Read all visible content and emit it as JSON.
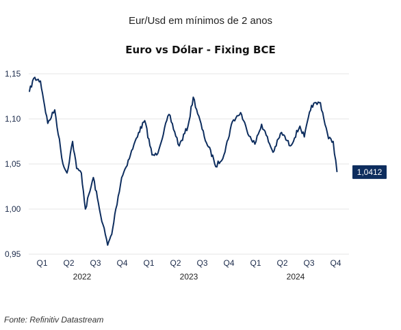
{
  "headline": "Eur/Usd em mínimos de 2 anos",
  "source": "Fonte: Refinitiv Datastream",
  "colors": {
    "line": "#0d2d5e",
    "label_bg": "#0d2d5e",
    "grid": "#e6e6e6"
  },
  "chart_data": {
    "type": "line",
    "title": "Euro vs Dólar - Fixing BCE",
    "xlabel": "",
    "ylabel": "",
    "ylim": [
      0.95,
      1.15
    ],
    "y_ticks": [
      "0,95",
      "1,00",
      "1,05",
      "1,10",
      "1,15"
    ],
    "grid": true,
    "x_quarters": [
      "Q1",
      "Q2",
      "Q3",
      "Q4",
      "Q1",
      "Q2",
      "Q3",
      "Q4",
      "Q1",
      "Q2",
      "Q3",
      "Q4"
    ],
    "x_years": [
      "2022",
      "2023",
      "2024"
    ],
    "end_value_label": "1,0412",
    "series": [
      {
        "x": [
          "2022-01-03",
          "2022-01-18",
          "2022-02-10",
          "2022-03-07",
          "2022-03-31",
          "2022-04-28",
          "2022-05-12",
          "2022-05-31",
          "2022-06-14",
          "2022-06-30",
          "2022-07-14",
          "2022-08-10",
          "2022-08-31",
          "2022-09-28",
          "2022-10-12",
          "2022-10-26",
          "2022-11-15",
          "2022-12-15",
          "2023-01-12",
          "2023-02-02",
          "2023-02-27",
          "2023-03-15",
          "2023-04-26",
          "2023-05-31",
          "2023-06-30",
          "2023-07-18",
          "2023-08-25",
          "2023-09-26",
          "2023-10-03",
          "2023-10-31",
          "2023-11-29",
          "2023-12-27",
          "2024-01-17",
          "2024-02-14",
          "2024-03-08",
          "2024-04-16",
          "2024-05-15",
          "2024-06-14",
          "2024-07-17",
          "2024-08-01",
          "2024-08-26",
          "2024-09-25",
          "2024-10-23",
          "2024-11-08",
          "2024-11-21"
        ],
        "y": [
          1.13,
          1.145,
          1.142,
          1.095,
          1.11,
          1.05,
          1.04,
          1.075,
          1.045,
          1.04,
          1.0,
          1.035,
          1.0,
          0.96,
          0.972,
          1.0,
          1.035,
          1.06,
          1.085,
          1.098,
          1.06,
          1.06,
          1.105,
          1.07,
          1.092,
          1.124,
          1.08,
          1.055,
          1.047,
          1.06,
          1.097,
          1.107,
          1.088,
          1.072,
          1.094,
          1.063,
          1.085,
          1.07,
          1.092,
          1.08,
          1.115,
          1.118,
          1.078,
          1.075,
          1.041
        ]
      }
    ]
  }
}
